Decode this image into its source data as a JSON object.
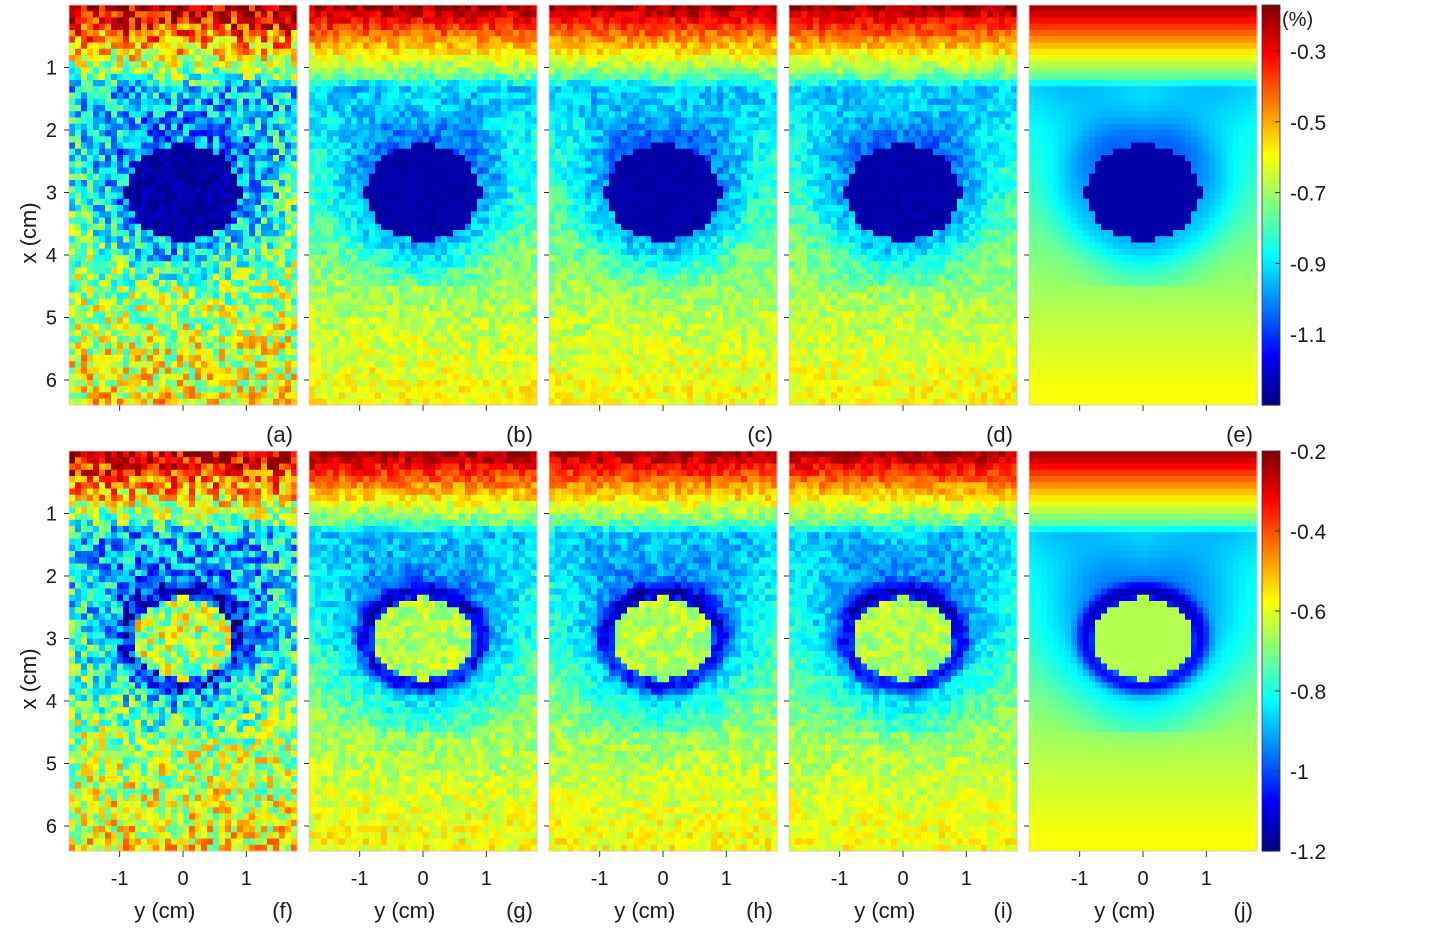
{
  "chart_data": {
    "type": "heatmap",
    "layout": "2 rows x 5 columns of heatmap panels, each row with its own colorbar on the right",
    "x_axis": {
      "label": "y (cm)",
      "range": [
        -1.8,
        1.8
      ],
      "ticks": [
        -1,
        0,
        1
      ],
      "tick_labels": [
        "-1",
        "0",
        "1"
      ]
    },
    "y_axis": {
      "label": "x (cm)",
      "range": [
        0.0,
        6.4
      ],
      "reversed": true,
      "ticks": [
        1,
        2,
        3,
        4,
        5,
        6
      ],
      "tick_labels": [
        "1",
        "2",
        "3",
        "4",
        "5",
        "6"
      ]
    },
    "colormap": "jet",
    "inclusion": {
      "center_y_cm": 0.0,
      "center_x_cm": 3.0,
      "radius_cm": 0.75
    },
    "rows": [
      {
        "colorbar": {
          "unit_label": "(%)",
          "range": [
            -1.3,
            -0.17
          ],
          "ticks": [
            -0.3,
            -0.5,
            -0.7,
            -0.9,
            -1.1
          ],
          "tick_labels": [
            "-0.3",
            "-0.5",
            "-0.7",
            "-0.9",
            "-1.1"
          ]
        },
        "inclusion_type": "low",
        "panels": [
          {
            "label": "(a)",
            "noise": 0.85
          },
          {
            "label": "(b)",
            "noise": 0.32
          },
          {
            "label": "(c)",
            "noise": 0.3
          },
          {
            "label": "(d)",
            "noise": 0.28
          },
          {
            "label": "(e)",
            "noise": 0.0
          }
        ]
      },
      {
        "colorbar": {
          "unit_label": "",
          "range": [
            -1.2,
            -0.2
          ],
          "ticks": [
            -0.2,
            -0.4,
            -0.6,
            -0.8,
            -1,
            -1.2
          ],
          "tick_labels": [
            "-0.2",
            "-0.4",
            "-0.6",
            "-0.8",
            "-1",
            "-1.2"
          ]
        },
        "inclusion_type": "ring",
        "panels": [
          {
            "label": "(f)",
            "noise": 0.85
          },
          {
            "label": "(g)",
            "noise": 0.32
          },
          {
            "label": "(h)",
            "noise": 0.3
          },
          {
            "label": "(i)",
            "noise": 0.28
          },
          {
            "label": "(j)",
            "noise": 0.0
          }
        ]
      }
    ]
  }
}
